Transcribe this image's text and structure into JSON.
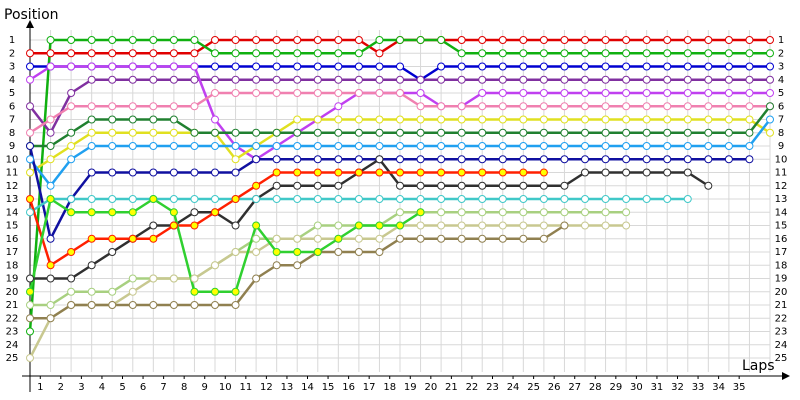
{
  "chart_data": {
    "type": "line",
    "y_title": "Position",
    "x_title": "Laps",
    "x": [
      0,
      1,
      2,
      3,
      4,
      5,
      6,
      7,
      8,
      9,
      10,
      11,
      12,
      13,
      14,
      15,
      16,
      17,
      18,
      19,
      20,
      21,
      22,
      23,
      24,
      25,
      26,
      27,
      28,
      29,
      30,
      31,
      32,
      33,
      34,
      35,
      36
    ],
    "xlim": [
      0,
      36
    ],
    "ylim": [
      1,
      25
    ],
    "y_inverted": true,
    "grid": true,
    "xticks": [
      {
        "value": 0.5,
        "label": "1"
      },
      {
        "value": 1.5,
        "label": "2"
      },
      {
        "value": 2.5,
        "label": "3"
      },
      {
        "value": 3.5,
        "label": "4"
      },
      {
        "value": 4.5,
        "label": "5"
      },
      {
        "value": 5.5,
        "label": "6"
      },
      {
        "value": 6.5,
        "label": "7"
      },
      {
        "value": 7.5,
        "label": "8"
      },
      {
        "value": 8.5,
        "label": "9"
      },
      {
        "value": 9.5,
        "label": "10"
      },
      {
        "value": 10.5,
        "label": "11"
      },
      {
        "value": 11.5,
        "label": "12"
      },
      {
        "value": 12.5,
        "label": "13"
      },
      {
        "value": 13.5,
        "label": "14"
      },
      {
        "value": 14.5,
        "label": "15"
      },
      {
        "value": 15.5,
        "label": "16"
      },
      {
        "value": 16.5,
        "label": "17"
      },
      {
        "value": 17.5,
        "label": "18"
      },
      {
        "value": 18.5,
        "label": "19"
      },
      {
        "value": 19.5,
        "label": "20"
      },
      {
        "value": 20.5,
        "label": "21"
      },
      {
        "value": 21.5,
        "label": "22"
      },
      {
        "value": 22.5,
        "label": "23"
      },
      {
        "value": 23.5,
        "label": "24"
      },
      {
        "value": 24.5,
        "label": "25"
      },
      {
        "value": 25.5,
        "label": "26"
      },
      {
        "value": 26.5,
        "label": "27"
      },
      {
        "value": 27.5,
        "label": "28"
      },
      {
        "value": 28.5,
        "label": "29"
      },
      {
        "value": 29.5,
        "label": "30"
      },
      {
        "value": 30.5,
        "label": "31"
      },
      {
        "value": 31.5,
        "label": "32"
      },
      {
        "value": 32.5,
        "label": "33"
      },
      {
        "value": 33.5,
        "label": "34"
      },
      {
        "value": 34.5,
        "label": "35"
      }
    ],
    "yticks": [
      1,
      2,
      3,
      4,
      5,
      6,
      7,
      8,
      9,
      10,
      11,
      12,
      13,
      14,
      15,
      16,
      17,
      18,
      19,
      20,
      21,
      22,
      23,
      24,
      25
    ],
    "series": [
      {
        "color": "#e00000",
        "values": [
          2,
          2,
          2,
          2,
          2,
          2,
          2,
          2,
          2,
          1,
          1,
          1,
          1,
          1,
          1,
          1,
          1,
          2,
          1,
          1,
          1,
          1,
          1,
          1,
          1,
          1,
          1,
          1,
          1,
          1,
          1,
          1,
          1,
          1,
          1,
          1,
          1
        ]
      },
      {
        "color": "#10b010",
        "values": [
          23,
          1,
          1,
          1,
          1,
          1,
          1,
          1,
          1,
          2,
          2,
          2,
          2,
          2,
          2,
          2,
          2,
          1,
          1,
          1,
          1,
          2,
          2,
          2,
          2,
          2,
          2,
          2,
          2,
          2,
          2,
          2,
          2,
          2,
          2,
          2,
          2
        ]
      },
      {
        "color": "#0000d0",
        "values": [
          3,
          3,
          3,
          3,
          3,
          3,
          3,
          3,
          3,
          3,
          3,
          3,
          3,
          3,
          3,
          3,
          3,
          3,
          3,
          4,
          3,
          3,
          3,
          3,
          3,
          3,
          3,
          3,
          3,
          3,
          3,
          3,
          3,
          3,
          3,
          3,
          3
        ]
      },
      {
        "color": "#8030a0",
        "values": [
          6,
          8,
          5,
          4,
          4,
          4,
          4,
          4,
          4,
          4,
          4,
          4,
          4,
          4,
          4,
          4,
          4,
          4,
          4,
          4,
          4,
          4,
          4,
          4,
          4,
          4,
          4,
          4,
          4,
          4,
          4,
          4,
          4,
          4,
          4,
          4,
          4
        ]
      },
      {
        "color": "#c040f0",
        "values": [
          4,
          3,
          3,
          3,
          3,
          3,
          3,
          3,
          3,
          7,
          9,
          10,
          9,
          8,
          7,
          6,
          5,
          5,
          5,
          5,
          6,
          6,
          5,
          5,
          5,
          5,
          5,
          5,
          5,
          5,
          5,
          5,
          5,
          5,
          5,
          5,
          5
        ]
      },
      {
        "color": "#f080b0",
        "values": [
          8,
          7,
          6,
          6,
          6,
          6,
          6,
          6,
          6,
          5,
          5,
          5,
          5,
          5,
          5,
          5,
          5,
          5,
          5,
          6,
          6,
          6,
          6,
          6,
          6,
          6,
          6,
          6,
          6,
          6,
          6,
          6,
          6,
          6,
          6,
          6,
          6
        ]
      },
      {
        "color": "#e0e020",
        "values": [
          11,
          10,
          9,
          8,
          8,
          8,
          8,
          8,
          8,
          8,
          10,
          9,
          8,
          7,
          7,
          7,
          7,
          7,
          7,
          7,
          7,
          7,
          7,
          7,
          7,
          7,
          7,
          7,
          7,
          7,
          7,
          7,
          7,
          7,
          7,
          7,
          8
        ]
      },
      {
        "color": "#208030",
        "values": [
          9,
          9,
          8,
          7,
          7,
          7,
          7,
          7,
          8,
          8,
          8,
          8,
          8,
          8,
          8,
          8,
          8,
          8,
          8,
          8,
          8,
          8,
          8,
          8,
          8,
          8,
          8,
          8,
          8,
          8,
          8,
          8,
          8,
          8,
          8,
          8,
          6
        ]
      },
      {
        "color": "#20a0f0",
        "values": [
          10,
          12,
          10,
          9,
          9,
          9,
          9,
          9,
          9,
          9,
          9,
          9,
          9,
          9,
          9,
          9,
          9,
          9,
          9,
          9,
          9,
          9,
          9,
          9,
          9,
          9,
          9,
          9,
          9,
          9,
          9,
          9,
          9,
          9,
          9,
          9,
          7
        ]
      },
      {
        "color": "#1010a0",
        "values": [
          9,
          16,
          13,
          11,
          11,
          11,
          11,
          11,
          11,
          11,
          11,
          10,
          10,
          10,
          10,
          10,
          10,
          10,
          10,
          10,
          10,
          10,
          10,
          10,
          10,
          10,
          10,
          10,
          10,
          10,
          10,
          10,
          10,
          10,
          10,
          10,
          null
        ]
      },
      {
        "color": "#303030",
        "values": [
          19,
          19,
          19,
          18,
          17,
          16,
          15,
          15,
          14,
          14,
          15,
          13,
          12,
          12,
          12,
          12,
          11,
          10,
          12,
          12,
          12,
          12,
          12,
          12,
          12,
          12,
          12,
          11,
          11,
          11,
          11,
          11,
          11,
          12,
          null,
          null,
          null
        ]
      },
      {
        "color": "#40c8c8",
        "values": [
          14,
          13,
          13,
          13,
          13,
          13,
          13,
          13,
          13,
          13,
          13,
          13,
          13,
          13,
          13,
          13,
          13,
          13,
          13,
          13,
          13,
          13,
          13,
          13,
          13,
          13,
          13,
          13,
          13,
          13,
          13,
          13,
          13,
          null,
          null,
          null,
          null
        ]
      },
      {
        "color": "#a8d080",
        "values": [
          21,
          21,
          20,
          20,
          20,
          19,
          19,
          19,
          19,
          18,
          17,
          16,
          16,
          16,
          15,
          15,
          15,
          15,
          14,
          14,
          14,
          14,
          14,
          14,
          14,
          14,
          14,
          14,
          14,
          14,
          null,
          null,
          null,
          null,
          null,
          null,
          null
        ]
      },
      {
        "color": "#c8c890",
        "values": [
          25,
          22,
          21,
          21,
          21,
          20,
          19,
          19,
          19,
          18,
          17,
          17,
          16,
          16,
          16,
          16,
          16,
          16,
          15,
          15,
          15,
          15,
          15,
          15,
          15,
          15,
          15,
          15,
          15,
          15,
          null,
          null,
          null,
          null,
          null,
          null,
          null
        ]
      },
      {
        "color": "#908050",
        "values": [
          22,
          22,
          21,
          21,
          21,
          21,
          21,
          21,
          21,
          21,
          21,
          19,
          18,
          18,
          17,
          17,
          17,
          17,
          16,
          16,
          16,
          16,
          16,
          16,
          16,
          16,
          15,
          null,
          null,
          null,
          null,
          null,
          null,
          null,
          null,
          null,
          null
        ]
      },
      {
        "color": "#ff2000",
        "marker_fill": "#ffff00",
        "values": [
          13,
          18,
          17,
          16,
          16,
          16,
          16,
          15,
          15,
          14,
          13,
          12,
          11,
          11,
          11,
          11,
          11,
          11,
          11,
          11,
          11,
          11,
          11,
          11,
          11,
          11,
          null,
          null,
          null,
          null,
          null,
          null,
          null,
          null,
          null,
          null,
          null
        ]
      },
      {
        "color": "#30d030",
        "marker_fill": "#ffff00",
        "values": [
          20,
          13,
          14,
          14,
          14,
          14,
          13,
          14,
          20,
          20,
          20,
          15,
          17,
          17,
          17,
          16,
          15,
          15,
          15,
          14,
          null,
          null,
          null,
          null,
          null,
          null,
          null,
          null,
          null,
          null,
          null,
          null,
          null,
          null,
          null,
          null,
          null
        ]
      }
    ]
  }
}
